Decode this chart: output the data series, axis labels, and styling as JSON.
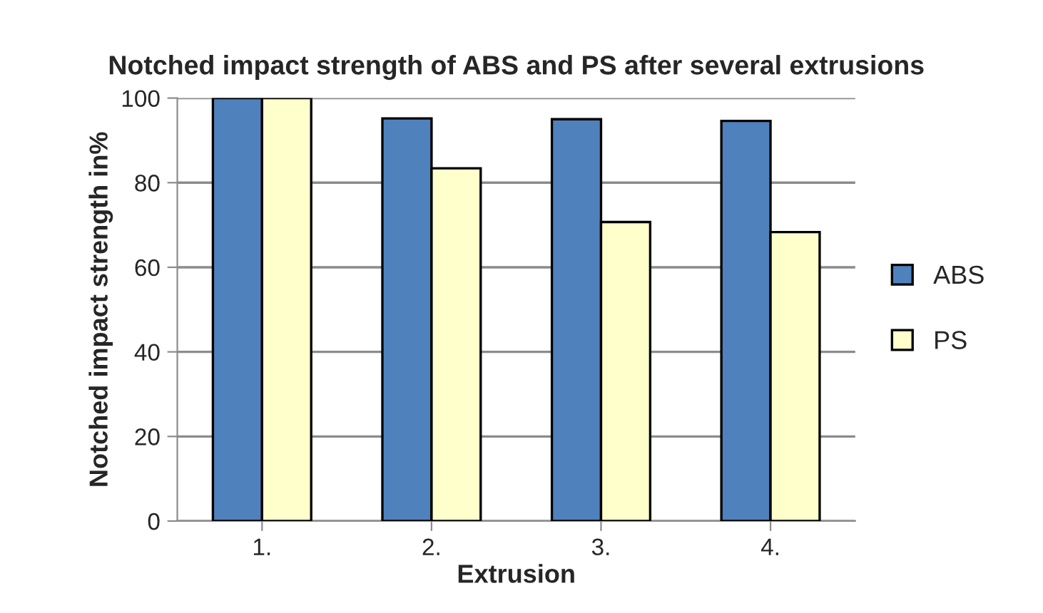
{
  "chart_data": {
    "type": "bar",
    "title": "Notched impact strength of ABS and PS after several extrusions",
    "xlabel": "Extrusion",
    "ylabel": "Notched impact strength in%",
    "categories": [
      "1.",
      "2.",
      "3.",
      "4."
    ],
    "series": [
      {
        "name": "ABS",
        "color": "#4f81bd",
        "values": [
          100,
          95.2,
          95.0,
          94.6
        ]
      },
      {
        "name": "PS",
        "color": "#ffffcc",
        "values": [
          100,
          83.4,
          70.7,
          68.3
        ]
      }
    ],
    "ylim": [
      0,
      100
    ],
    "yticks": [
      0,
      20,
      40,
      60,
      80,
      100
    ],
    "grid": "y",
    "legend": "right"
  }
}
